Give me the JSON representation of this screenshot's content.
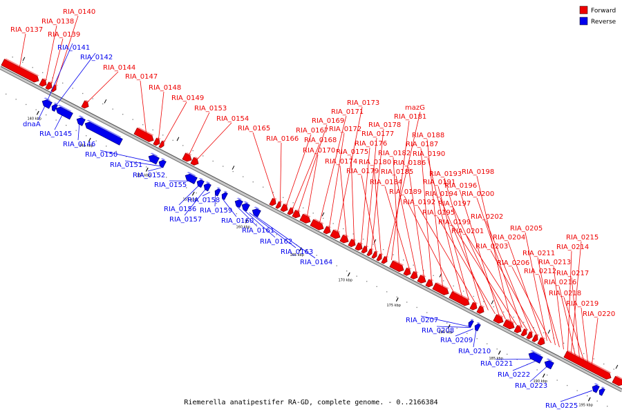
{
  "legend": {
    "forward": {
      "label": "Forward",
      "color": "#ee0000"
    },
    "reverse": {
      "label": "Reverse",
      "color": "#0000ee"
    }
  },
  "footer": "Riemerella anatipestifer RA-GD, complete genome. - 0..2166384",
  "ticks": [
    {
      "label": "140 kbp"
    },
    {
      "label": "145 kbp"
    },
    {
      "label": "150 kbp"
    },
    {
      "label": "155 kbp"
    },
    {
      "label": "160 kbp"
    },
    {
      "label": "165 kbp"
    },
    {
      "label": "170 kbp"
    },
    {
      "label": "175 kbp"
    },
    {
      "label": "180 kbp"
    },
    {
      "label": "185 kbp"
    },
    {
      "label": "190 kbp"
    },
    {
      "label": "195 kbp"
    }
  ],
  "forward_genes": [
    "RIA_0137",
    "RIA_0138",
    "RIA_0139",
    "RIA_0140",
    "RIA_0144",
    "RIA_0147",
    "RIA_0148",
    "RIA_0149",
    "RIA_0153",
    "RIA_0154",
    "RIA_0165",
    "RIA_0166",
    "RIA_0167",
    "RIA_0168",
    "RIA_0169",
    "RIA_0170",
    "RIA_0171",
    "RIA_0172",
    "RIA_0173",
    "RIA_0174",
    "RIA_0175",
    "RIA_0176",
    "RIA_0177",
    "RIA_0178",
    "RIA_0179",
    "RIA_0180",
    "mazG",
    "RIA_0181",
    "RIA_0182",
    "RIA_0184",
    "RIA_0185",
    "RIA_0186",
    "RIA_0187",
    "RIA_0188",
    "RIA_0189",
    "RIA_0190",
    "RIA_0191",
    "RIA_0192",
    "RIA_0193",
    "RIA_0194",
    "RIA_0195",
    "RIA_0196",
    "RIA_0197",
    "RIA_0198",
    "RIA_0199",
    "RIA_0200",
    "RIA_0201",
    "RIA_0202",
    "RIA_0203",
    "RIA_0204",
    "RIA_0205",
    "RIA_0206",
    "RIA_0211",
    "RIA_0212",
    "RIA_0213",
    "RIA_0214",
    "RIA_0215",
    "RIA_0216",
    "RIA_0217",
    "RIA_0218",
    "RIA_0219",
    "RIA_0220"
  ],
  "reverse_genes": [
    "RIA_0141",
    "RIA_0142",
    "dnaA",
    "RIA_0145",
    "RIA_0146",
    "RIA_0150",
    "RIA_0151",
    "RIA_0152",
    "RIA_0155",
    "RIA_0156",
    "RIA_0157",
    "RIA_0158",
    "RIA_0159",
    "RIA_0160",
    "RIA_0161",
    "RIA_0162",
    "RIA_0163",
    "RIA_0164",
    "RIA_0207",
    "RIA_0208",
    "RIA_0209",
    "RIA_0210",
    "RIA_0221",
    "RIA_0222",
    "RIA_0223",
    "RIA_0225"
  ]
}
